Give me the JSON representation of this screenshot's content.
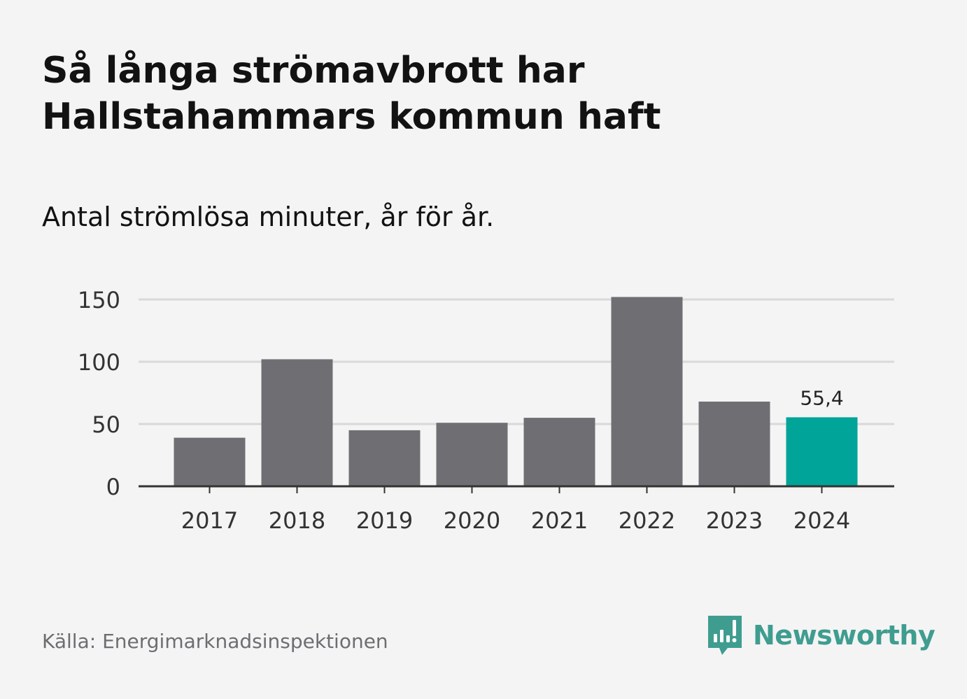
{
  "title_lines": [
    "Så långa strömavbrott har",
    "Hallstahammars kommun haft"
  ],
  "subtitle": "Antal strömlösa minuter, år för år.",
  "source": "Källa: Energimarknadsinspektionen",
  "brand": {
    "name": "Newsworthy",
    "icon": "newsworthy-logo-icon",
    "color": "#3f9d90"
  },
  "chart_data": {
    "type": "bar",
    "categories": [
      "2017",
      "2018",
      "2019",
      "2020",
      "2021",
      "2022",
      "2023",
      "2024"
    ],
    "values": [
      39,
      102,
      45,
      51,
      55,
      152,
      68,
      55.4
    ],
    "ylim": [
      0,
      150
    ],
    "yticks": [
      0,
      50,
      100,
      150
    ],
    "ytick_labels": [
      "0",
      "50",
      "100",
      "150"
    ],
    "grid": true,
    "data_labels": [
      {
        "index": 7,
        "text": "55,4"
      }
    ],
    "colors": {
      "default": "#6f6e73",
      "highlight": "#00a499",
      "highlight_index": 7,
      "grid": "#d9d9d9",
      "axis": "#333333"
    }
  }
}
